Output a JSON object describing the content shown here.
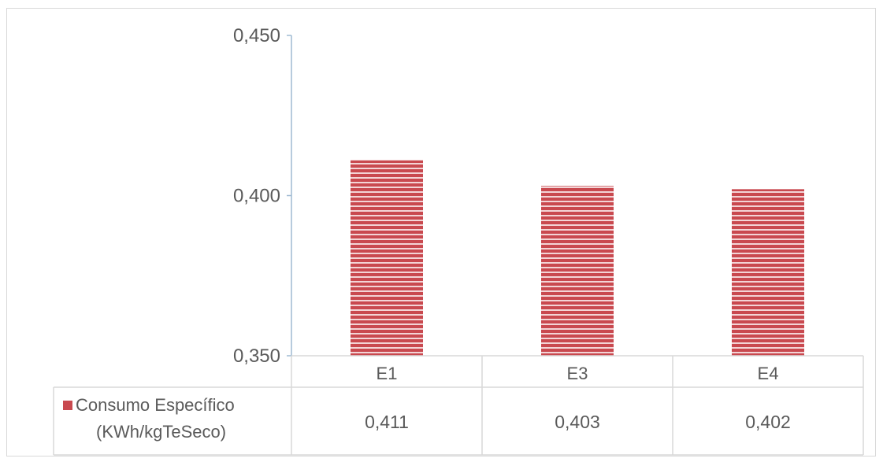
{
  "chart_data": {
    "type": "bar",
    "categories": [
      "E1",
      "E3",
      "E4"
    ],
    "series": [
      {
        "name": "Consumo Específico (KWh/kgTeSeco)",
        "name_lines": [
          "Consumo Específico",
          "(KWh/kgTeSeco)"
        ],
        "values": [
          0.411,
          0.403,
          0.402
        ],
        "value_labels": [
          "0,411",
          "0,403",
          "0,402"
        ]
      }
    ],
    "yticks": [
      {
        "value": 0.45,
        "label": "0,450"
      },
      {
        "value": 0.4,
        "label": "0,400"
      },
      {
        "value": 0.35,
        "label": "0,350"
      }
    ],
    "ylim": [
      0.35,
      0.45
    ],
    "grid": false,
    "legend": "data-table-left",
    "colors": {
      "bar": "#c9494f",
      "bar_stripe": "#f3d4d6",
      "axis": "#9fbad2",
      "table_line": "#d9d9d9",
      "text": "#5a5a5a"
    }
  }
}
